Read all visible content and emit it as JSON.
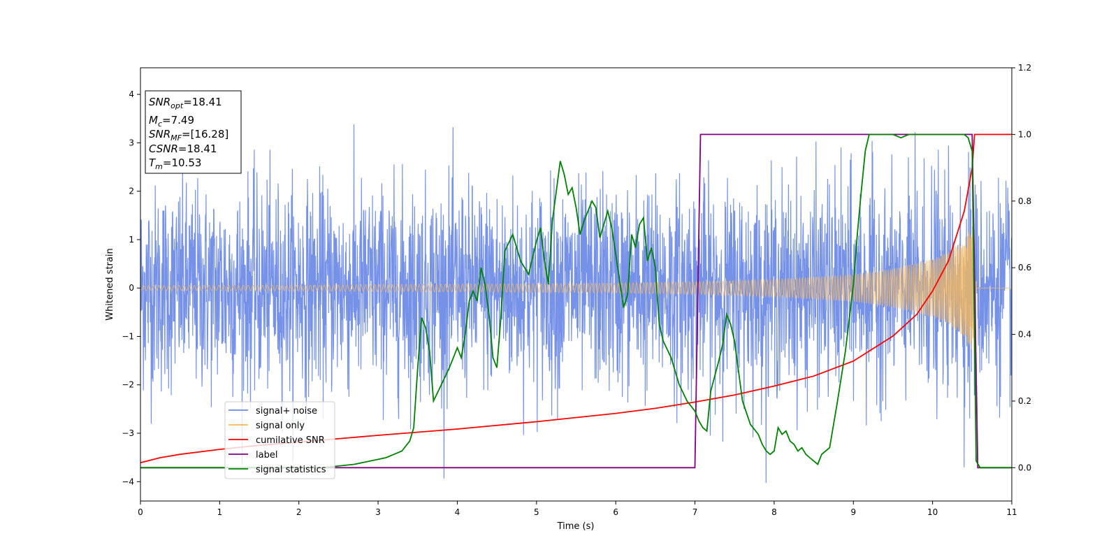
{
  "chart_data": {
    "type": "line",
    "xlabel": "Time (s)",
    "ylabel": "Whitened strain",
    "xlim": [
      0,
      11
    ],
    "ylim_left": [
      -4.4,
      4.55
    ],
    "ylim_right": [
      -0.1,
      1.2
    ],
    "x_ticks": [
      "0",
      "1",
      "2",
      "3",
      "4",
      "5",
      "6",
      "7",
      "8",
      "9",
      "10",
      "11"
    ],
    "y_ticks_left": [
      "−4",
      "−3",
      "−2",
      "−1",
      "0",
      "1",
      "2",
      "3",
      "4"
    ],
    "y_ticks_right": [
      "0.0",
      "0.2",
      "0.4",
      "0.6",
      "0.8",
      "1.0",
      "1.2"
    ],
    "grid": false,
    "legend_position": "lower-left",
    "stats": {
      "snr_opt": {
        "label": "SNR",
        "sub": "opt",
        "value": "=18.41"
      },
      "mc": {
        "label": "M",
        "sub": "c",
        "value": "=7.49"
      },
      "snr_mf": {
        "label": "SNR",
        "sub": "MF",
        "value": "=[16.28]"
      },
      "csnr": {
        "label": "CSNR",
        "value": "=18.41"
      },
      "tm": {
        "label": "T",
        "sub": "m",
        "value": "=10.53"
      }
    },
    "series": [
      {
        "name": "signal+ noise",
        "axis": "left",
        "color": "#6a89e6",
        "noise_sigma": 1.05,
        "signal_end_s": 10.53
      },
      {
        "name": "signal only",
        "axis": "left",
        "color": "#f2b65e",
        "envelope": {
          "x": [
            0,
            2,
            4,
            6,
            7,
            8,
            9,
            9.5,
            10,
            10.2,
            10.4,
            10.5,
            10.53,
            10.55,
            11
          ],
          "y": [
            0.05,
            0.06,
            0.08,
            0.1,
            0.13,
            0.18,
            0.28,
            0.4,
            0.6,
            0.75,
            1.0,
            1.3,
            1.4,
            0,
            0
          ]
        }
      },
      {
        "name": "cumilative SNR",
        "axis": "right",
        "color": "#ff0000",
        "x": [
          0,
          0.25,
          0.5,
          1,
          1.5,
          2,
          3,
          4,
          5,
          6,
          6.5,
          7,
          7.5,
          8,
          8.5,
          9,
          9.5,
          9.8,
          10,
          10.2,
          10.4,
          10.5,
          10.53,
          11
        ],
        "y": [
          0.015,
          0.03,
          0.04,
          0.055,
          0.067,
          0.077,
          0.097,
          0.116,
          0.138,
          0.163,
          0.178,
          0.197,
          0.218,
          0.245,
          0.275,
          0.32,
          0.395,
          0.46,
          0.53,
          0.62,
          0.77,
          0.9,
          1.0,
          1.0
        ]
      },
      {
        "name": "label",
        "axis": "right",
        "color": "#800080",
        "x": [
          0,
          7.0,
          7.07,
          10.5,
          10.57,
          11
        ],
        "y": [
          0,
          0,
          1,
          1,
          0,
          0
        ]
      },
      {
        "name": "signal statistics",
        "axis": "right",
        "color": "#008000",
        "x": [
          0,
          0.5,
          1,
          1.5,
          2,
          2.3,
          2.5,
          2.7,
          2.9,
          3.0,
          3.1,
          3.2,
          3.3,
          3.4,
          3.45,
          3.5,
          3.55,
          3.6,
          3.65,
          3.7,
          3.8,
          3.9,
          4.0,
          4.05,
          4.1,
          4.15,
          4.2,
          4.25,
          4.3,
          4.35,
          4.4,
          4.45,
          4.5,
          4.55,
          4.6,
          4.7,
          4.8,
          4.9,
          5.0,
          5.05,
          5.1,
          5.15,
          5.2,
          5.3,
          5.35,
          5.4,
          5.45,
          5.5,
          5.55,
          5.6,
          5.7,
          5.75,
          5.8,
          5.85,
          5.9,
          5.95,
          6.0,
          6.05,
          6.1,
          6.15,
          6.2,
          6.25,
          6.3,
          6.35,
          6.4,
          6.45,
          6.5,
          6.55,
          6.6,
          6.7,
          6.8,
          6.9,
          7.0,
          7.05,
          7.1,
          7.15,
          7.2,
          7.3,
          7.35,
          7.4,
          7.45,
          7.5,
          7.6,
          7.7,
          7.8,
          7.85,
          7.9,
          7.95,
          8.0,
          8.05,
          8.1,
          8.15,
          8.2,
          8.25,
          8.3,
          8.35,
          8.4,
          8.45,
          8.5,
          8.55,
          8.6,
          8.65,
          8.7,
          8.8,
          8.9,
          9.0,
          9.05,
          9.1,
          9.15,
          9.2,
          9.3,
          9.4,
          9.5,
          9.6,
          9.7,
          9.8,
          9.9,
          10.0,
          10.1,
          10.2,
          10.3,
          10.4,
          10.45,
          10.5,
          10.55,
          10.6,
          10.65,
          11
        ],
        "y": [
          0.0,
          0.0,
          0.0,
          0.0,
          0.0,
          0.0,
          0.005,
          0.01,
          0.02,
          0.025,
          0.03,
          0.04,
          0.05,
          0.08,
          0.12,
          0.3,
          0.45,
          0.42,
          0.35,
          0.2,
          0.25,
          0.3,
          0.36,
          0.33,
          0.4,
          0.5,
          0.53,
          0.5,
          0.6,
          0.55,
          0.46,
          0.33,
          0.3,
          0.45,
          0.65,
          0.7,
          0.62,
          0.58,
          0.68,
          0.72,
          0.62,
          0.55,
          0.74,
          0.92,
          0.88,
          0.82,
          0.84,
          0.78,
          0.7,
          0.74,
          0.8,
          0.78,
          0.69,
          0.73,
          0.77,
          0.72,
          0.64,
          0.56,
          0.48,
          0.52,
          0.7,
          0.66,
          0.73,
          0.75,
          0.62,
          0.66,
          0.6,
          0.43,
          0.38,
          0.33,
          0.25,
          0.2,
          0.17,
          0.14,
          0.12,
          0.11,
          0.23,
          0.32,
          0.37,
          0.46,
          0.43,
          0.38,
          0.2,
          0.13,
          0.1,
          0.07,
          0.05,
          0.04,
          0.05,
          0.12,
          0.1,
          0.11,
          0.08,
          0.07,
          0.05,
          0.06,
          0.04,
          0.03,
          0.02,
          0.01,
          0.04,
          0.05,
          0.06,
          0.2,
          0.35,
          0.55,
          0.7,
          0.83,
          0.95,
          1.0,
          1.0,
          1.0,
          1.0,
          0.99,
          1.0,
          1.0,
          1.0,
          1.0,
          1.0,
          1.0,
          1.0,
          1.0,
          0.99,
          0.95,
          0.02,
          0.0,
          0.0,
          0.0
        ]
      }
    ]
  }
}
